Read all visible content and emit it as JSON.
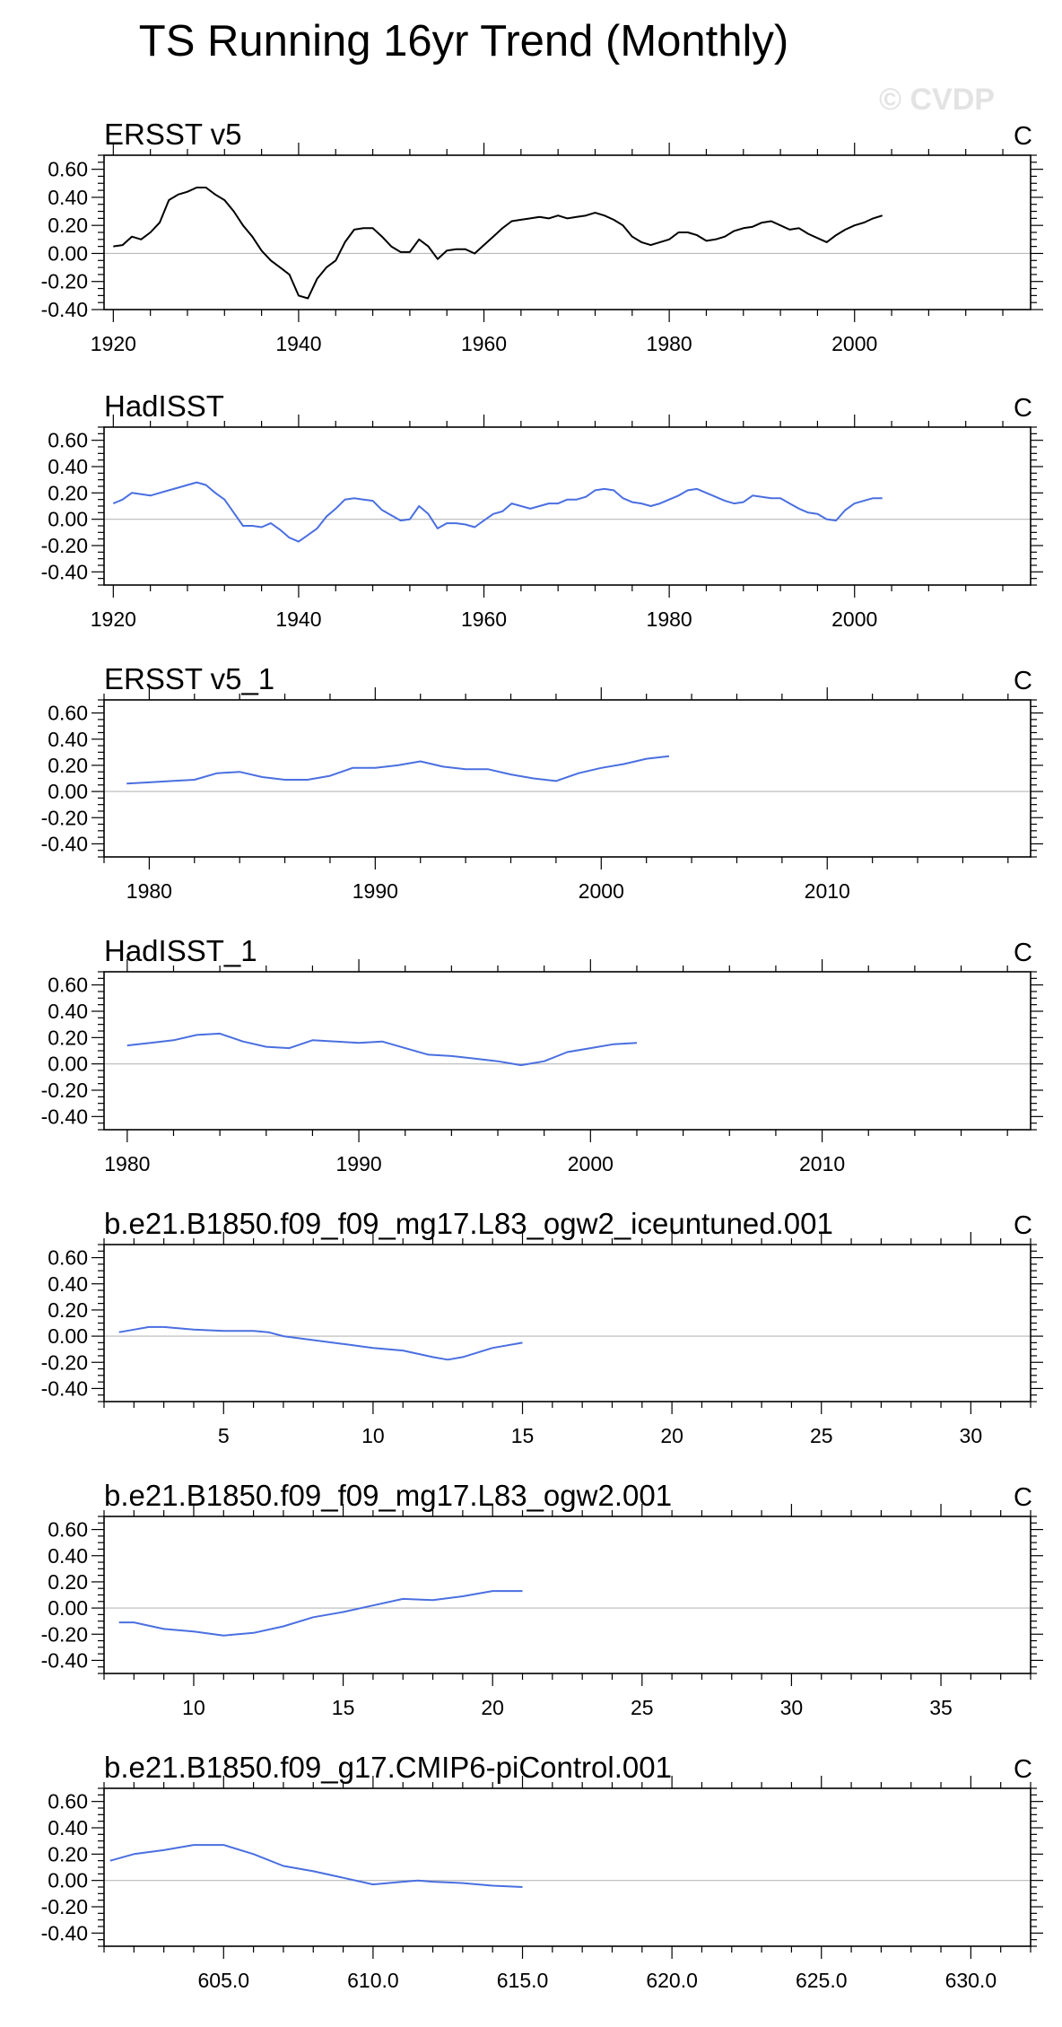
{
  "figure": {
    "title": "TS Running 16yr Trend (Monthly)",
    "watermark": "© CVDP"
  },
  "chart_data": [
    {
      "type": "line",
      "title": "ERSST v5",
      "units": "C",
      "xlim": [
        1919,
        2019
      ],
      "ylim": [
        -0.4,
        0.7
      ],
      "xticks": [
        1920,
        1940,
        1960,
        1980,
        2000
      ],
      "xtick_labels": [
        "1920",
        "1940",
        "1960",
        "1980",
        "2000"
      ],
      "yticks": [
        -0.4,
        -0.2,
        0.0,
        0.2,
        0.4,
        0.6
      ],
      "ytick_labels": [
        "-0.40",
        "-0.20",
        "0.00",
        "0.20",
        "0.40",
        "0.60"
      ],
      "line_color": "#000000",
      "series": [
        {
          "x": [
            1920,
            1921,
            1922,
            1923,
            1924,
            1925,
            1926,
            1927,
            1928,
            1929,
            1930,
            1931,
            1932,
            1933,
            1934,
            1935,
            1936,
            1937,
            1938,
            1939,
            1940,
            1941,
            1942,
            1943,
            1944,
            1945,
            1946,
            1947,
            1948,
            1949,
            1950,
            1951,
            1952,
            1953,
            1954,
            1955,
            1956,
            1957,
            1958,
            1959,
            1960,
            1961,
            1962,
            1963,
            1964,
            1965,
            1966,
            1967,
            1968,
            1969,
            1970,
            1971,
            1972,
            1973,
            1974,
            1975,
            1976,
            1977,
            1978,
            1979,
            1980,
            1981,
            1982,
            1983,
            1984,
            1985,
            1986,
            1987,
            1988,
            1989,
            1990,
            1991,
            1992,
            1993,
            1994,
            1995,
            1996,
            1997,
            1998,
            1999,
            2000,
            2001,
            2002,
            2003
          ],
          "y": [
            0.05,
            0.06,
            0.12,
            0.1,
            0.15,
            0.22,
            0.38,
            0.42,
            0.44,
            0.47,
            0.47,
            0.42,
            0.38,
            0.3,
            0.2,
            0.12,
            0.02,
            -0.05,
            -0.1,
            -0.15,
            -0.3,
            -0.32,
            -0.18,
            -0.1,
            -0.05,
            0.08,
            0.17,
            0.18,
            0.18,
            0.12,
            0.05,
            0.01,
            0.01,
            0.1,
            0.05,
            -0.04,
            0.02,
            0.03,
            0.03,
            0.0,
            0.06,
            0.12,
            0.18,
            0.23,
            0.24,
            0.25,
            0.26,
            0.25,
            0.27,
            0.25,
            0.26,
            0.27,
            0.29,
            0.27,
            0.24,
            0.2,
            0.12,
            0.08,
            0.06,
            0.08,
            0.1,
            0.15,
            0.15,
            0.13,
            0.09,
            0.1,
            0.12,
            0.16,
            0.18,
            0.19,
            0.22,
            0.23,
            0.2,
            0.17,
            0.18,
            0.14,
            0.11,
            0.08,
            0.13,
            0.17,
            0.2,
            0.22,
            0.25,
            0.27
          ]
        }
      ]
    },
    {
      "type": "line",
      "title": "HadISST",
      "units": "C",
      "xlim": [
        1919,
        2019
      ],
      "ylim": [
        -0.5,
        0.7
      ],
      "xticks": [
        1920,
        1940,
        1960,
        1980,
        2000
      ],
      "xtick_labels": [
        "1920",
        "1940",
        "1960",
        "1980",
        "2000"
      ],
      "yticks": [
        -0.4,
        -0.2,
        0.0,
        0.2,
        0.4,
        0.6
      ],
      "ytick_labels": [
        "-0.40",
        "-0.20",
        "0.00",
        "0.20",
        "0.40",
        "0.60"
      ],
      "line_color": "#4a6fe0",
      "series": [
        {
          "x": [
            1920,
            1921,
            1922,
            1923,
            1924,
            1925,
            1926,
            1927,
            1928,
            1929,
            1930,
            1931,
            1932,
            1933,
            1934,
            1935,
            1936,
            1937,
            1938,
            1939,
            1940,
            1941,
            1942,
            1943,
            1944,
            1945,
            1946,
            1947,
            1948,
            1949,
            1950,
            1951,
            1952,
            1953,
            1954,
            1955,
            1956,
            1957,
            1958,
            1959,
            1960,
            1961,
            1962,
            1963,
            1964,
            1965,
            1966,
            1967,
            1968,
            1969,
            1970,
            1971,
            1972,
            1973,
            1974,
            1975,
            1976,
            1977,
            1978,
            1979,
            1980,
            1981,
            1982,
            1983,
            1984,
            1985,
            1986,
            1987,
            1988,
            1989,
            1990,
            1991,
            1992,
            1993,
            1994,
            1995,
            1996,
            1997,
            1998,
            1999,
            2000,
            2001,
            2002,
            2003
          ],
          "y": [
            0.12,
            0.15,
            0.2,
            0.19,
            0.18,
            0.2,
            0.22,
            0.24,
            0.26,
            0.28,
            0.26,
            0.2,
            0.15,
            0.05,
            -0.05,
            -0.05,
            -0.06,
            -0.03,
            -0.08,
            -0.14,
            -0.17,
            -0.12,
            -0.07,
            0.02,
            0.08,
            0.15,
            0.16,
            0.15,
            0.14,
            0.07,
            0.03,
            -0.01,
            0.0,
            0.1,
            0.04,
            -0.07,
            -0.03,
            -0.03,
            -0.04,
            -0.06,
            -0.01,
            0.04,
            0.06,
            0.12,
            0.1,
            0.08,
            0.1,
            0.12,
            0.12,
            0.15,
            0.15,
            0.17,
            0.22,
            0.23,
            0.22,
            0.16,
            0.13,
            0.12,
            0.1,
            0.12,
            0.15,
            0.18,
            0.22,
            0.23,
            0.2,
            0.17,
            0.14,
            0.12,
            0.13,
            0.18,
            0.17,
            0.16,
            0.16,
            0.12,
            0.08,
            0.05,
            0.04,
            0.0,
            -0.01,
            0.07,
            0.12,
            0.14,
            0.16,
            0.16
          ]
        }
      ]
    },
    {
      "type": "line",
      "title": "ERSST v5_1",
      "units": "C",
      "xlim": [
        1978,
        2019
      ],
      "ylim": [
        -0.5,
        0.7
      ],
      "xticks": [
        1980,
        1990,
        2000,
        2010
      ],
      "xtick_labels": [
        "1980",
        "1990",
        "2000",
        "2010"
      ],
      "yticks": [
        -0.4,
        -0.2,
        0.0,
        0.2,
        0.4,
        0.6
      ],
      "ytick_labels": [
        "-0.40",
        "-0.20",
        "0.00",
        "0.20",
        "0.40",
        "0.60"
      ],
      "line_color": "#4a6fe0",
      "series": [
        {
          "x": [
            1979,
            1980,
            1981,
            1982,
            1983,
            1984,
            1985,
            1986,
            1987,
            1988,
            1989,
            1990,
            1991,
            1992,
            1993,
            1994,
            1995,
            1996,
            1997,
            1998,
            1999,
            2000,
            2001,
            2002,
            2003
          ],
          "y": [
            0.06,
            0.07,
            0.08,
            0.09,
            0.14,
            0.15,
            0.11,
            0.09,
            0.09,
            0.12,
            0.18,
            0.18,
            0.2,
            0.23,
            0.19,
            0.17,
            0.17,
            0.13,
            0.1,
            0.08,
            0.14,
            0.18,
            0.21,
            0.25,
            0.27
          ]
        }
      ]
    },
    {
      "type": "line",
      "title": "HadISST_1",
      "units": "C",
      "xlim": [
        1979,
        2019
      ],
      "ylim": [
        -0.5,
        0.7
      ],
      "xticks": [
        1980,
        1990,
        2000,
        2010
      ],
      "xtick_labels": [
        "1980",
        "1990",
        "2000",
        "2010"
      ],
      "yticks": [
        -0.4,
        -0.2,
        0.0,
        0.2,
        0.4,
        0.6
      ],
      "ytick_labels": [
        "-0.40",
        "-0.20",
        "0.00",
        "0.20",
        "0.40",
        "0.60"
      ],
      "line_color": "#4a6fe0",
      "series": [
        {
          "x": [
            1980,
            1981,
            1982,
            1983,
            1984,
            1985,
            1986,
            1987,
            1988,
            1989,
            1990,
            1991,
            1992,
            1993,
            1994,
            1995,
            1996,
            1997,
            1998,
            1999,
            2000,
            2001,
            2002
          ],
          "y": [
            0.14,
            0.16,
            0.18,
            0.22,
            0.23,
            0.17,
            0.13,
            0.12,
            0.18,
            0.17,
            0.16,
            0.17,
            0.12,
            0.07,
            0.06,
            0.04,
            0.02,
            -0.01,
            0.02,
            0.09,
            0.12,
            0.15,
            0.16
          ]
        }
      ]
    },
    {
      "type": "line",
      "title": "b.e21.B1850.f09_f09_mg17.L83_ogw2_iceuntuned.001",
      "units": "C",
      "xlim": [
        1,
        32
      ],
      "ylim": [
        -0.5,
        0.7
      ],
      "xticks": [
        5,
        10,
        15,
        20,
        25,
        30
      ],
      "xtick_labels": [
        "5",
        "10",
        "15",
        "20",
        "25",
        "30"
      ],
      "yticks": [
        -0.4,
        -0.2,
        0.0,
        0.2,
        0.4,
        0.6
      ],
      "ytick_labels": [
        "-0.40",
        "-0.20",
        "0.00",
        "0.20",
        "0.40",
        "0.60"
      ],
      "line_color": "#4a6fe0",
      "series": [
        {
          "x": [
            1.5,
            2,
            2.5,
            3,
            4,
            5,
            6,
            6.5,
            7,
            8,
            9,
            10,
            11,
            12,
            12.5,
            13,
            14,
            15
          ],
          "y": [
            0.03,
            0.05,
            0.07,
            0.07,
            0.05,
            0.04,
            0.04,
            0.03,
            0.0,
            -0.03,
            -0.06,
            -0.09,
            -0.11,
            -0.16,
            -0.18,
            -0.16,
            -0.09,
            -0.05
          ]
        }
      ]
    },
    {
      "type": "line",
      "title": "b.e21.B1850.f09_f09_mg17.L83_ogw2.001",
      "units": "C",
      "xlim": [
        7,
        38
      ],
      "ylim": [
        -0.5,
        0.7
      ],
      "xticks": [
        10,
        15,
        20,
        25,
        30,
        35
      ],
      "xtick_labels": [
        "10",
        "15",
        "20",
        "25",
        "30",
        "35"
      ],
      "yticks": [
        -0.4,
        -0.2,
        0.0,
        0.2,
        0.4,
        0.6
      ],
      "ytick_labels": [
        "-0.40",
        "-0.20",
        "0.00",
        "0.20",
        "0.40",
        "0.60"
      ],
      "line_color": "#4a6fe0",
      "series": [
        {
          "x": [
            7.5,
            8,
            9,
            10,
            11,
            12,
            13,
            14,
            15,
            16,
            17,
            18,
            19,
            20,
            21
          ],
          "y": [
            -0.11,
            -0.11,
            -0.16,
            -0.18,
            -0.21,
            -0.19,
            -0.14,
            -0.07,
            -0.03,
            0.02,
            0.07,
            0.06,
            0.09,
            0.13,
            0.13
          ]
        }
      ]
    },
    {
      "type": "line",
      "title": "b.e21.B1850.f09_g17.CMIP6-piControl.001",
      "units": "C",
      "xlim": [
        601,
        632
      ],
      "ylim": [
        -0.5,
        0.7
      ],
      "xticks": [
        605,
        610,
        615,
        620,
        625,
        630
      ],
      "xtick_labels": [
        "605.0",
        "610.0",
        "615.0",
        "620.0",
        "625.0",
        "630.0"
      ],
      "yticks": [
        -0.4,
        -0.2,
        0.0,
        0.2,
        0.4,
        0.6
      ],
      "ytick_labels": [
        "-0.40",
        "-0.20",
        "0.00",
        "0.20",
        "0.40",
        "0.60"
      ],
      "line_color": "#4a6fe0",
      "series": [
        {
          "x": [
            601.2,
            602,
            603,
            604,
            605,
            606,
            607,
            608,
            609,
            610,
            611,
            611.5,
            612,
            613,
            614,
            615
          ],
          "y": [
            0.15,
            0.2,
            0.23,
            0.27,
            0.27,
            0.2,
            0.11,
            0.07,
            0.02,
            -0.03,
            -0.01,
            0.0,
            -0.01,
            -0.02,
            -0.04,
            -0.05
          ]
        }
      ]
    }
  ]
}
